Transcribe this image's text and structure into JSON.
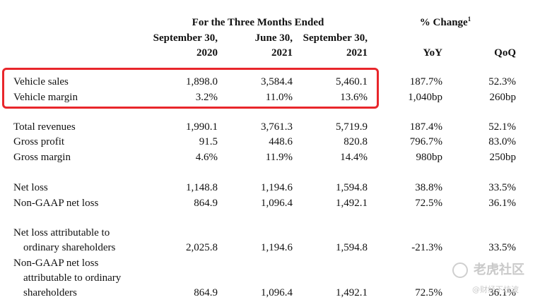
{
  "header": {
    "group_title": "For the Three Months Ended",
    "change_title": "% Change",
    "change_footnote": "1",
    "columns": [
      {
        "line1": "September 30,",
        "line2": "2020"
      },
      {
        "line1": "June 30,",
        "line2": "2021"
      },
      {
        "line1": "September 30,",
        "line2": "2021"
      },
      {
        "line1": "",
        "line2": "YoY"
      },
      {
        "line1": "",
        "line2": "QoQ"
      }
    ]
  },
  "rows": [
    {
      "label": [
        "Vehicle sales"
      ],
      "values": [
        "1,898.0",
        "3,584.4",
        "5,460.1",
        "187.7%",
        "52.3%"
      ]
    },
    {
      "label": [
        "Vehicle margin"
      ],
      "values": [
        "3.2%",
        "11.0%",
        "13.6%",
        "1,040bp",
        "260bp"
      ]
    },
    {
      "label": [
        "Total revenues"
      ],
      "values": [
        "1,990.1",
        "3,761.3",
        "5,719.9",
        "187.4%",
        "52.1%"
      ]
    },
    {
      "label": [
        "Gross profit"
      ],
      "values": [
        "91.5",
        "448.6",
        "820.8",
        "796.7%",
        "83.0%"
      ]
    },
    {
      "label": [
        "Gross margin"
      ],
      "values": [
        "4.6%",
        "11.9%",
        "14.4%",
        "980bp",
        "250bp"
      ]
    },
    {
      "label": [
        "Net loss"
      ],
      "values": [
        "1,148.8",
        "1,194.6",
        "1,594.8",
        "38.8%",
        "33.5%"
      ]
    },
    {
      "label": [
        "Non-GAAP net loss"
      ],
      "values": [
        "864.9",
        "1,096.4",
        "1,492.1",
        "72.5%",
        "36.1%"
      ]
    },
    {
      "label": [
        "Net loss attributable to",
        "ordinary shareholders"
      ],
      "values": [
        "2,025.8",
        "1,194.6",
        "1,594.8",
        "-21.3%",
        "33.5%"
      ]
    },
    {
      "label": [
        "Non-GAAP net loss",
        "attributable to ordinary",
        "shareholders"
      ],
      "values": [
        "864.9",
        "1,096.4",
        "1,492.1",
        "72.5%",
        "36.1%"
      ]
    }
  ],
  "highlight": {
    "color": "#e8262b"
  },
  "watermark": {
    "title": "老虎社区",
    "subtitle": "@财经下炫波",
    "icon": "tiger-logo-icon"
  }
}
